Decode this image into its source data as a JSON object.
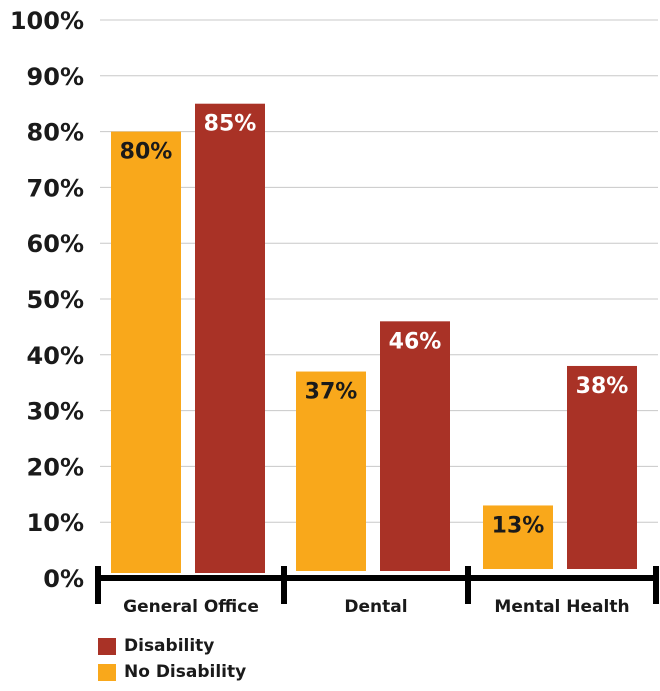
{
  "colors": {
    "disability": "#a93226",
    "no_disability": "#f9a81b",
    "axis": "#000000",
    "grid": "#c8c8c8",
    "label_on_red": "#ffffff",
    "label_on_gold": "#1a1a1a"
  },
  "chart_data": {
    "type": "bar",
    "categories": [
      "General Office",
      "Dental",
      "Mental Health"
    ],
    "series": [
      {
        "name": "No Disability",
        "values": [
          80,
          37,
          13
        ],
        "labels": [
          "80%",
          "37%",
          "13%"
        ]
      },
      {
        "name": "Disability",
        "values": [
          85,
          46,
          38
        ],
        "labels": [
          "85%",
          "46%",
          "38%"
        ]
      }
    ],
    "ylim": [
      0,
      100
    ],
    "yticks": [
      "0%",
      "10%",
      "20%",
      "30%",
      "40%",
      "50%",
      "60%",
      "70%",
      "80%",
      "90%",
      "100%"
    ],
    "grid": true,
    "legend_position": "bottom-left",
    "legend": [
      {
        "label": "Disability",
        "color_key": "disability"
      },
      {
        "label": "No Disability",
        "color_key": "no_disability"
      }
    ]
  }
}
